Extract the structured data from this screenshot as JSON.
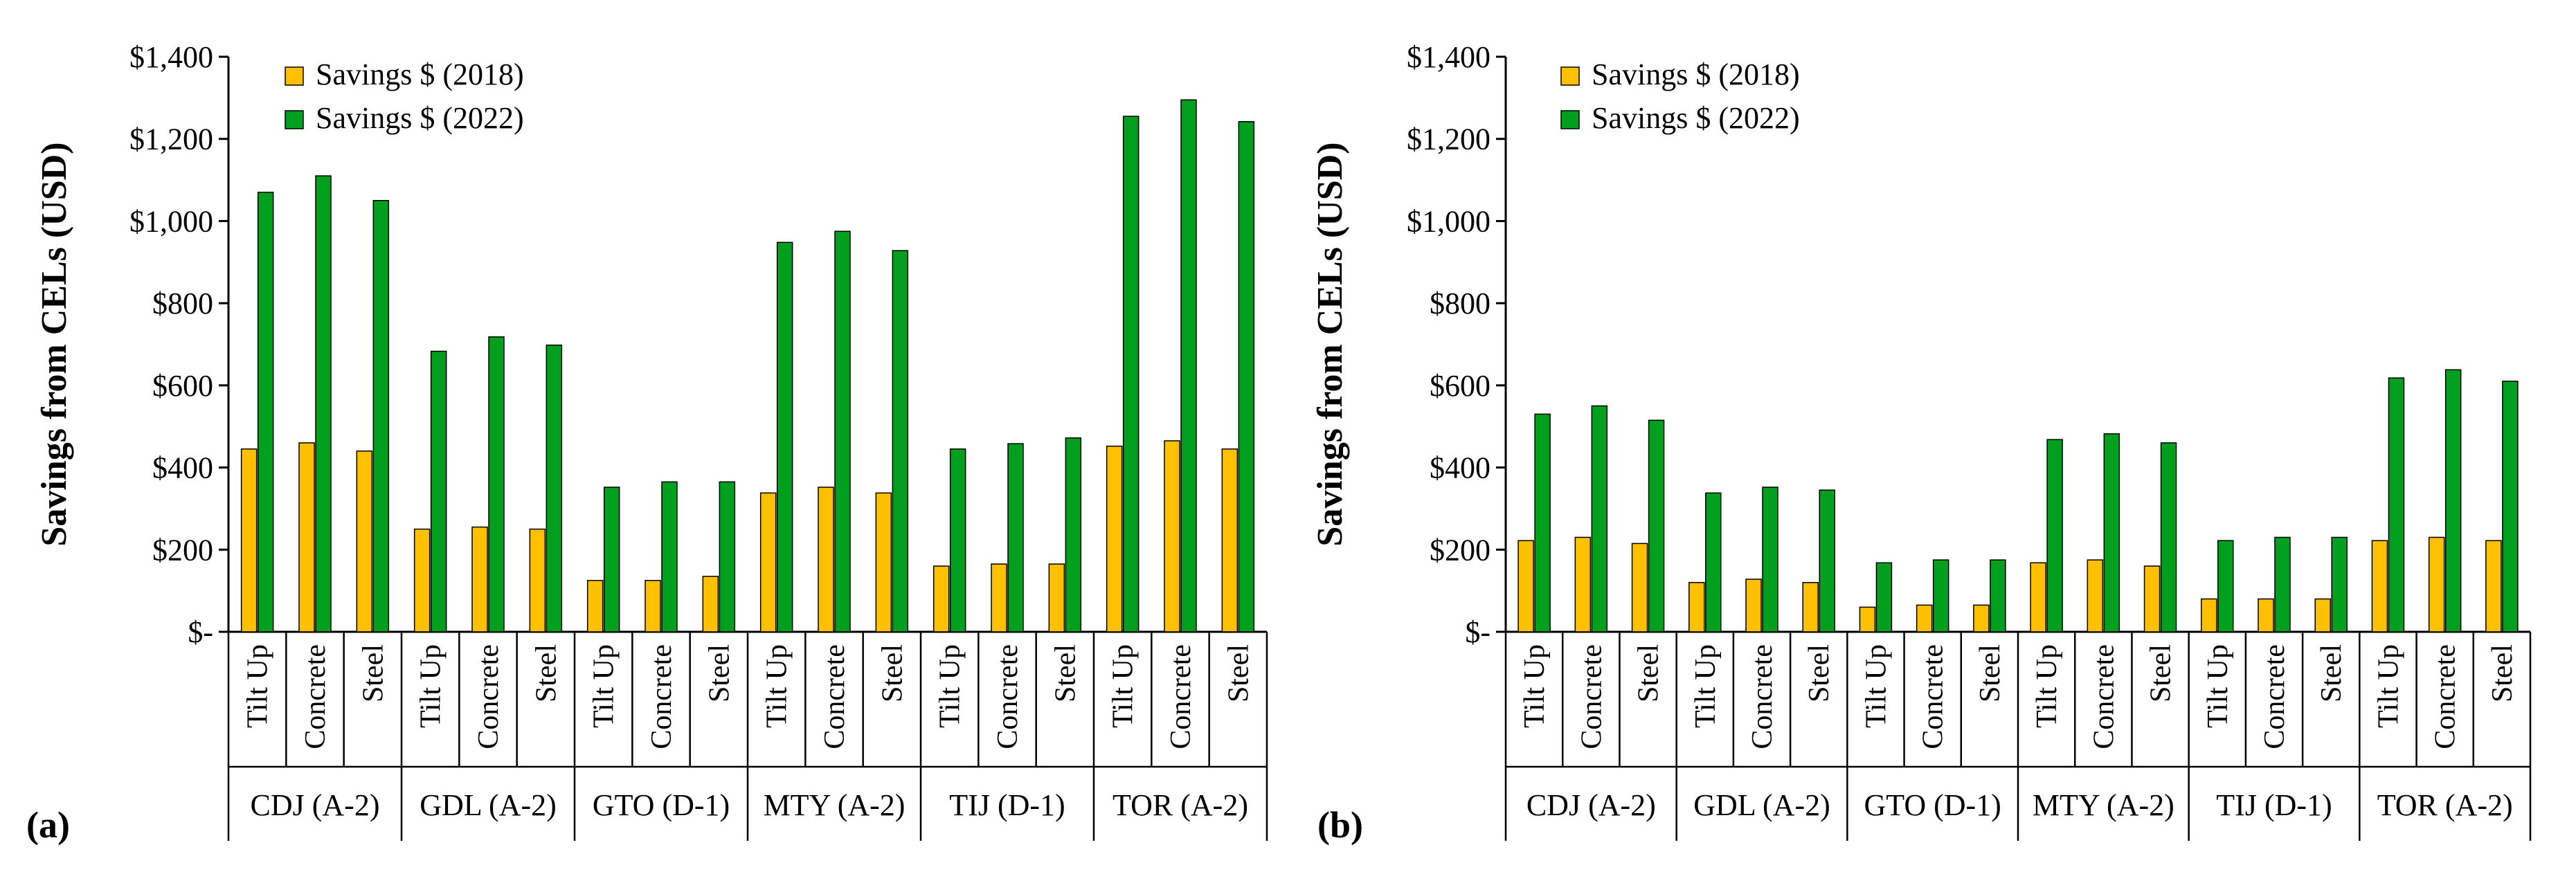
{
  "colors": {
    "s2018": "#FFC000",
    "s2022": "#00A01E",
    "axis": "#000000"
  },
  "chart_data": [
    {
      "type": "bar",
      "panel_label": "(a)",
      "ylabel": "Savings from CELs (USD)",
      "ylim": [
        0,
        1400
      ],
      "yticks": [
        {
          "value": 0,
          "label": "$-"
        },
        {
          "value": 200,
          "label": "$200"
        },
        {
          "value": 400,
          "label": "$400"
        },
        {
          "value": 600,
          "label": "$600"
        },
        {
          "value": 800,
          "label": "$800"
        },
        {
          "value": 1000,
          "label": "$1,000"
        },
        {
          "value": 1200,
          "label": "$1,200"
        },
        {
          "value": 1400,
          "label": "$1,400"
        }
      ],
      "legend_position": "top-left",
      "groups": [
        "CDJ (A-2)",
        "GDL (A-2)",
        "GTO (D-1)",
        "MTY (A-2)",
        "TIJ (D-1)",
        "TOR (A-2)"
      ],
      "subcategories": [
        "Tilt Up",
        "Concrete",
        "Steel"
      ],
      "series": [
        {
          "name": "Savings $ (2018)",
          "values": [
            445,
            460,
            440,
            250,
            255,
            250,
            125,
            125,
            135,
            338,
            352,
            338,
            160,
            165,
            165,
            452,
            465,
            445
          ]
        },
        {
          "name": "Savings $ (2022)",
          "values": [
            1070,
            1110,
            1050,
            683,
            718,
            698,
            352,
            365,
            365,
            948,
            975,
            928,
            445,
            458,
            472,
            1255,
            1295,
            1242
          ]
        }
      ]
    },
    {
      "type": "bar",
      "panel_label": "(b)",
      "ylabel": "Savings from CELs (USD)",
      "ylim": [
        0,
        1400
      ],
      "yticks": [
        {
          "value": 0,
          "label": "$-"
        },
        {
          "value": 200,
          "label": "$200"
        },
        {
          "value": 400,
          "label": "$400"
        },
        {
          "value": 600,
          "label": "$600"
        },
        {
          "value": 800,
          "label": "$800"
        },
        {
          "value": 1000,
          "label": "$1,000"
        },
        {
          "value": 1200,
          "label": "$1,200"
        },
        {
          "value": 1400,
          "label": "$1,400"
        }
      ],
      "legend_position": "top-left",
      "groups": [
        "CDJ (A-2)",
        "GDL (A-2)",
        "GTO (D-1)",
        "MTY (A-2)",
        "TIJ (D-1)",
        "TOR (A-2)"
      ],
      "subcategories": [
        "Tilt Up",
        "Concrete",
        "Steel"
      ],
      "series": [
        {
          "name": "Savings $ (2018)",
          "values": [
            222,
            230,
            215,
            120,
            128,
            120,
            60,
            65,
            65,
            168,
            175,
            160,
            80,
            80,
            80,
            222,
            230,
            222
          ]
        },
        {
          "name": "Savings $ (2022)",
          "values": [
            530,
            550,
            515,
            338,
            352,
            345,
            168,
            175,
            175,
            468,
            482,
            460,
            222,
            230,
            230,
            618,
            638,
            610
          ]
        }
      ]
    }
  ]
}
